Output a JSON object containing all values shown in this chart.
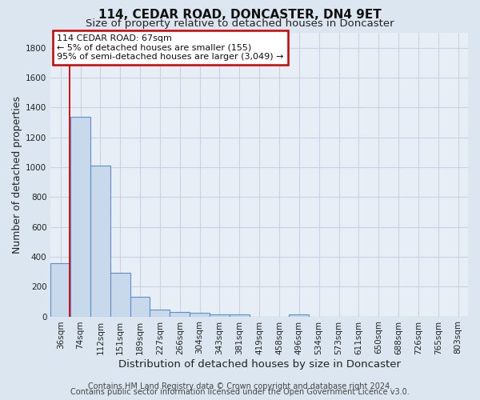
{
  "title": "114, CEDAR ROAD, DONCASTER, DN4 9ET",
  "subtitle": "Size of property relative to detached houses in Doncaster",
  "xlabel": "Distribution of detached houses by size in Doncaster",
  "ylabel": "Number of detached properties",
  "footer_line1": "Contains HM Land Registry data © Crown copyright and database right 2024.",
  "footer_line2": "Contains public sector information licensed under the Open Government Licence v3.0.",
  "annotation_line1": "114 CEDAR ROAD: 67sqm",
  "annotation_line2": "← 5% of detached houses are smaller (155)",
  "annotation_line3": "95% of semi-detached houses are larger (3,049) →",
  "bar_labels": [
    "36sqm",
    "74sqm",
    "112sqm",
    "151sqm",
    "189sqm",
    "227sqm",
    "266sqm",
    "304sqm",
    "343sqm",
    "381sqm",
    "419sqm",
    "458sqm",
    "496sqm",
    "534sqm",
    "573sqm",
    "611sqm",
    "650sqm",
    "688sqm",
    "726sqm",
    "765sqm",
    "803sqm"
  ],
  "bar_values": [
    355,
    1340,
    1010,
    290,
    130,
    45,
    30,
    25,
    15,
    15,
    0,
    0,
    15,
    0,
    0,
    0,
    0,
    0,
    0,
    0,
    0
  ],
  "bar_color": "#c9d9ec",
  "bar_edge_color": "#5b8fc9",
  "red_line_x": 0.47,
  "ylim": [
    0,
    1900
  ],
  "yticks": [
    0,
    200,
    400,
    600,
    800,
    1000,
    1200,
    1400,
    1600,
    1800
  ],
  "bg_color": "#dce6f0",
  "plot_bg_color": "#e8eef5",
  "grid_color": "#c8d4e3",
  "annotation_box_color": "#ffffff",
  "annotation_box_edge": "#cc0000",
  "title_fontsize": 11,
  "subtitle_fontsize": 9.5,
  "axis_label_fontsize": 9,
  "tick_fontsize": 7.5,
  "footer_fontsize": 7
}
